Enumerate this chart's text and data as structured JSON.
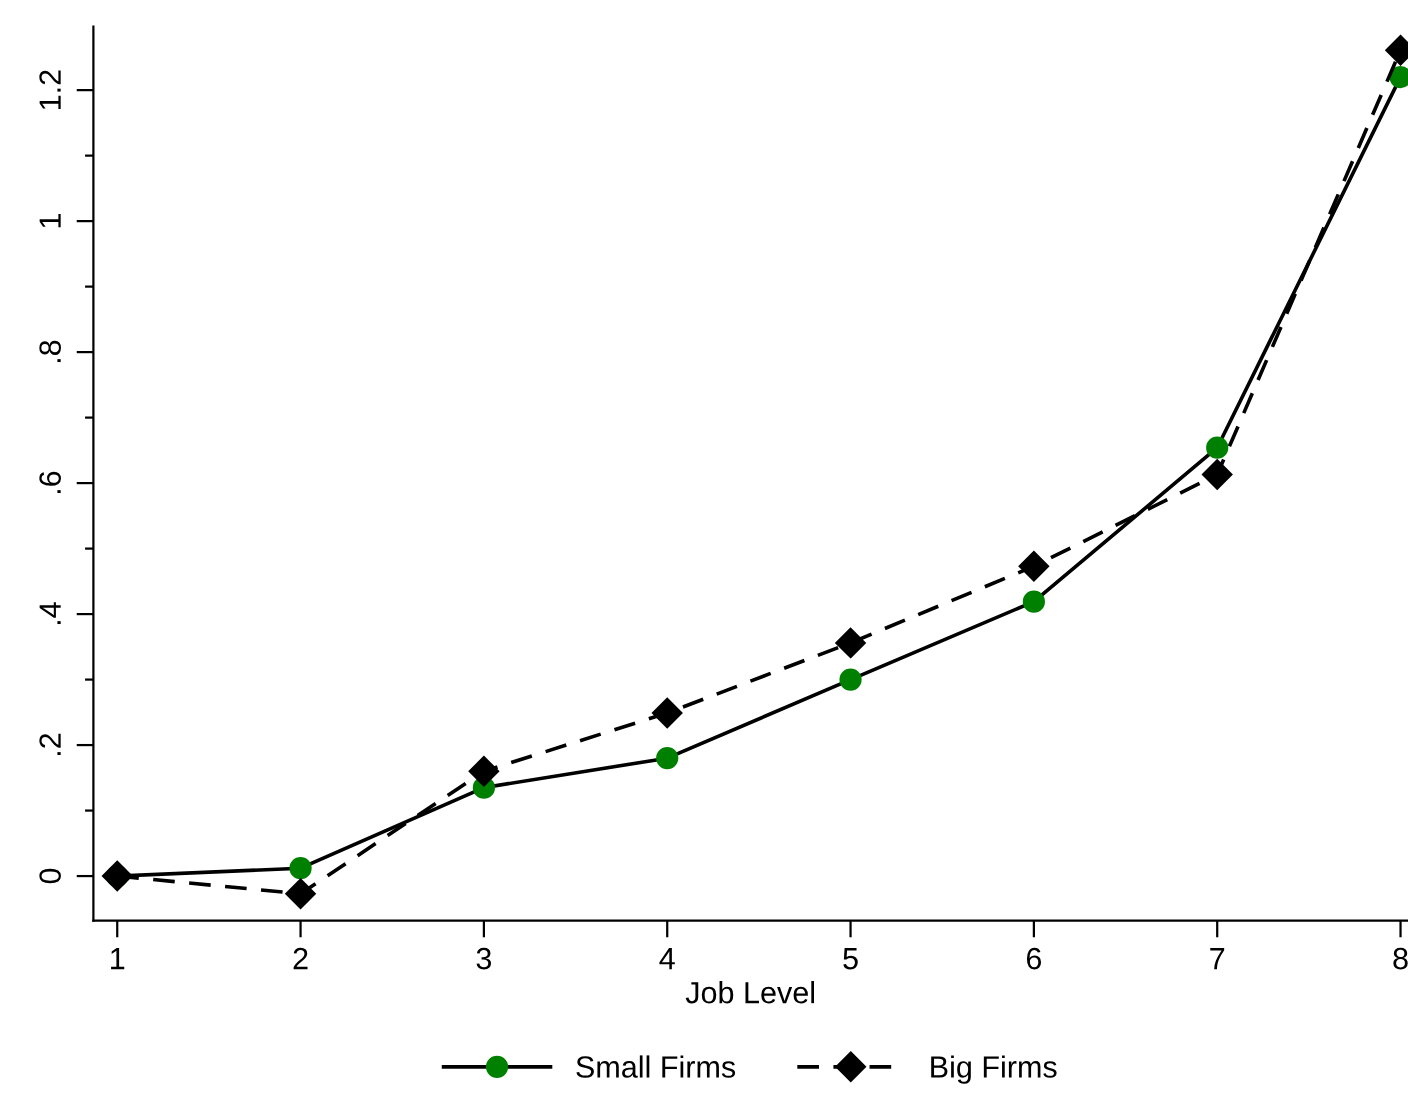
{
  "chart_data": {
    "type": "line",
    "xlabel": "Job Level",
    "x": [
      1,
      2,
      3,
      4,
      5,
      6,
      7,
      8
    ],
    "series": [
      {
        "name": "Small Firms",
        "color": "#008000",
        "marker": "circle",
        "line_style": "solid",
        "values": [
          0,
          0.012,
          0.135,
          0.18,
          0.3,
          0.419,
          0.654,
          1.22
        ]
      },
      {
        "name": "Big Firms",
        "color": "#000000",
        "marker": "diamond",
        "line_style": "dashed",
        "values": [
          0,
          -0.027,
          0.16,
          0.249,
          0.356,
          0.473,
          0.613,
          1.261
        ]
      }
    ],
    "xlim": [
      0.87,
      8.04
    ],
    "ylim": [
      -0.068,
      1.297
    ],
    "xticks": [
      1,
      2,
      3,
      4,
      5,
      6,
      7,
      8
    ],
    "yticks": [
      0,
      {
        "value": 0.1,
        "label": null
      },
      {
        "value": 0.2,
        "label": ".2"
      },
      {
        "value": 0.3,
        "label": null
      },
      {
        "value": 0.4,
        "label": ".4"
      },
      {
        "value": 0.5,
        "label": null
      },
      {
        "value": 0.6,
        "label": ".6"
      },
      {
        "value": 0.7,
        "label": null
      },
      {
        "value": 0.8,
        "label": ".8"
      },
      {
        "value": 0.9,
        "label": null
      },
      1,
      {
        "value": 1.1,
        "label": null
      },
      {
        "value": 1.2,
        "label": "1.2"
      }
    ],
    "grid": false,
    "legend": "bottom"
  }
}
